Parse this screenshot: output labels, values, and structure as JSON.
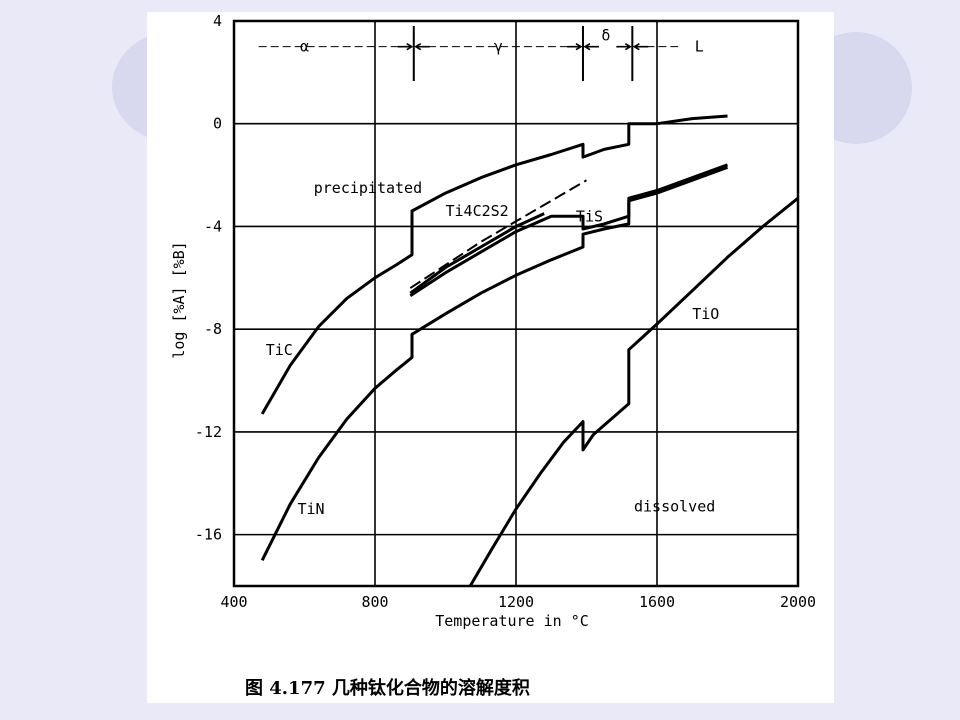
{
  "background": {
    "slide_color": "#e9e9f7",
    "decor_color": "#d8d8ee",
    "paper_color": "#ffffff"
  },
  "caption": "图 4.177   几种钛化合物的溶解度积",
  "chart_data": {
    "type": "line",
    "xlabel": "Temperature in °C",
    "ylabel": "log [%A] [%B]",
    "xlim": [
      400,
      2000
    ],
    "ylim": [
      -18,
      4
    ],
    "xticks": [
      400,
      800,
      1200,
      1600,
      2000
    ],
    "yticks": [
      4,
      0,
      -4,
      -8,
      -12,
      -16
    ],
    "xtick_labels": [
      "400",
      "800",
      "1200",
      "1600",
      "2000"
    ],
    "ytick_labels": [
      "4",
      "0",
      "-4",
      "-8",
      "-12",
      "-16"
    ],
    "grid": true,
    "phase_boundaries": [
      910,
      1390,
      1530
    ],
    "phases": [
      {
        "label": "α",
        "x": 600
      },
      {
        "label": "γ",
        "x": 1150
      },
      {
        "label": "δ",
        "x": 1455
      },
      {
        "label": "L",
        "x": 1720
      }
    ],
    "region_labels": [
      {
        "text": "precipitated",
        "x": 780,
        "y": -2.7
      },
      {
        "text": "dissolved",
        "x": 1650,
        "y": -15.1
      }
    ],
    "series": [
      {
        "name": "TiC",
        "label_pos": [
          490,
          -9.0
        ],
        "dashed": false,
        "x": [
          480,
          560,
          640,
          720,
          800,
          860,
          905,
          905,
          1000,
          1100,
          1200,
          1300,
          1390,
          1390,
          1450,
          1520,
          1520,
          1600,
          1700,
          1800
        ],
        "y": [
          -11.3,
          -9.4,
          -7.9,
          -6.8,
          -6.0,
          -5.5,
          -5.1,
          -3.4,
          -2.7,
          -2.1,
          -1.6,
          -1.2,
          -0.8,
          -1.3,
          -1.0,
          -0.8,
          0.0,
          0.0,
          0.2,
          0.3
        ]
      },
      {
        "name": "Ti4C2S2",
        "label_pos": [
          1000,
          -3.6
        ],
        "dashed": false,
        "x": [
          900,
          1000,
          1100,
          1200,
          1280
        ],
        "y": [
          -6.6,
          -5.6,
          -4.8,
          -4.0,
          -3.5
        ]
      },
      {
        "name": "",
        "dashed": true,
        "x": [
          900,
          1000,
          1100,
          1200,
          1300,
          1400
        ],
        "y": [
          -6.4,
          -5.5,
          -4.6,
          -3.8,
          -3.0,
          -2.2
        ]
      },
      {
        "name": "TiS",
        "label_pos": [
          1370,
          -3.8
        ],
        "dashed": false,
        "x": [
          900,
          1000,
          1100,
          1200,
          1300,
          1390,
          1390,
          1450,
          1520,
          1520,
          1600,
          1700,
          1800
        ],
        "y": [
          -6.7,
          -5.8,
          -5.0,
          -4.2,
          -3.6,
          -3.6,
          -4.1,
          -3.9,
          -3.6,
          -2.9,
          -2.6,
          -2.1,
          -1.6
        ]
      },
      {
        "name": "TiN",
        "label_pos": [
          580,
          -15.2
        ],
        "dashed": false,
        "x": [
          480,
          560,
          640,
          720,
          800,
          860,
          905,
          905,
          1000,
          1100,
          1200,
          1300,
          1390,
          1390,
          1450,
          1520,
          1520,
          1600,
          1700,
          1800
        ],
        "y": [
          -17.0,
          -14.8,
          -13.0,
          -11.5,
          -10.3,
          -9.6,
          -9.1,
          -8.2,
          -7.4,
          -6.6,
          -5.9,
          -5.3,
          -4.8,
          -4.3,
          -4.1,
          -3.9,
          -3.0,
          -2.7,
          -2.2,
          -1.7
        ]
      },
      {
        "name": "TiO",
        "label_pos": [
          1700,
          -7.6
        ],
        "dashed": false,
        "x": [
          1070,
          1130,
          1200,
          1270,
          1335,
          1390,
          1390,
          1420,
          1520,
          1520,
          1600,
          1700,
          1800,
          1900,
          2000
        ],
        "y": [
          -18.0,
          -16.6,
          -15.0,
          -13.6,
          -12.4,
          -11.6,
          -12.7,
          -12.1,
          -10.9,
          -8.8,
          -7.8,
          -6.5,
          -5.2,
          -4.0,
          -2.9
        ]
      }
    ]
  }
}
